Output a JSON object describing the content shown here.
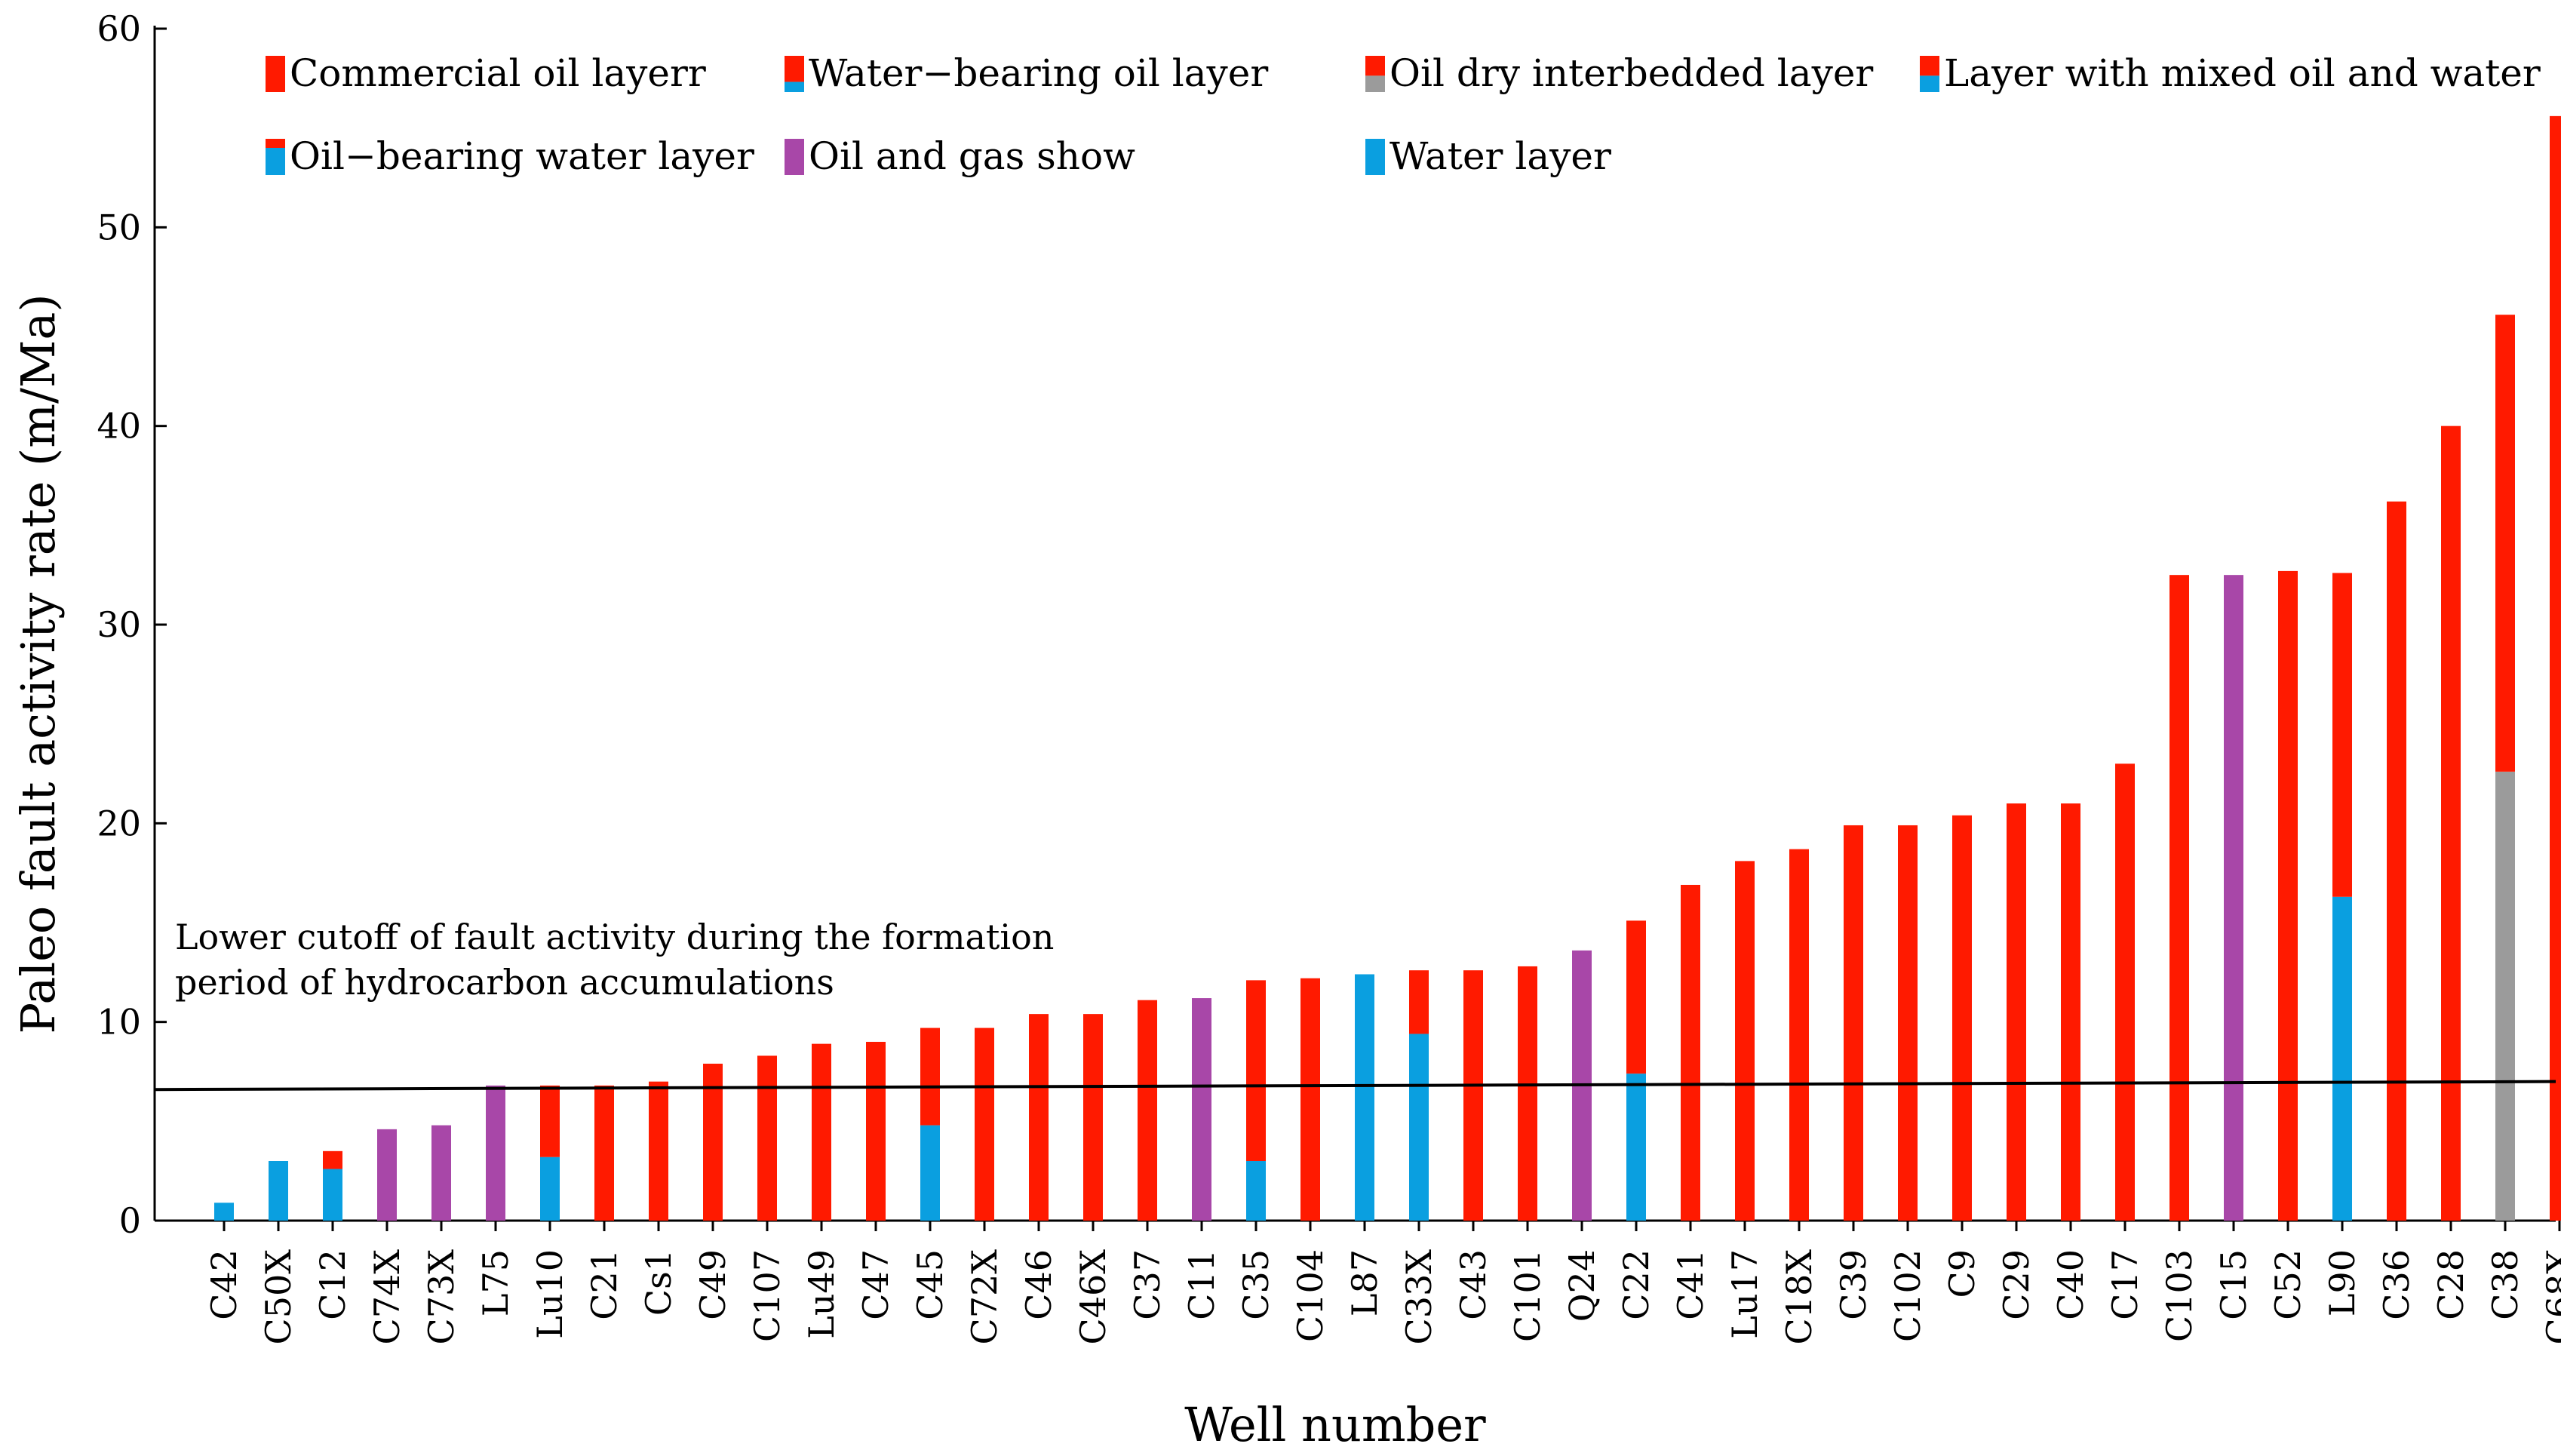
{
  "chart_data": {
    "type": "bar",
    "stacked": true,
    "title": "",
    "xlabel": "Well number",
    "ylabel": "Paleo fault activity rate (m/Ma)",
    "ylim": [
      0,
      60
    ],
    "yticks": [
      "0",
      "10",
      "20",
      "30",
      "40",
      "50",
      "60"
    ],
    "grid": false,
    "legend_position": "top",
    "colors": {
      "red": "#ff1a00",
      "blue": "#0a9fe0",
      "gray": "#9b9b9b",
      "purple": "#a847a8"
    },
    "legend": [
      {
        "label": "Commercial oil layerr",
        "swatch": "red"
      },
      {
        "label": "Water−bearing oil layer",
        "swatch": "red-over-blue"
      },
      {
        "label": "Oil dry interbedded layer",
        "swatch": "red-over-gray"
      },
      {
        "label": "Layer with mixed oil and water",
        "swatch": "red-over-blue-half"
      },
      {
        "label": "Oil−bearing water layer",
        "swatch": "blue-under-red-thin"
      },
      {
        "label": "Oil and gas show",
        "swatch": "purple"
      },
      {
        "label": "Water  layer",
        "swatch": "blue"
      }
    ],
    "categories": [
      "C42",
      "C50X",
      "C12",
      "C74X",
      "C73X",
      "L75",
      "Lu10",
      "C21",
      "Cs1",
      "C49",
      "C107",
      "Lu49",
      "C47",
      "C45",
      "C72X",
      "C46",
      "C46X",
      "C37",
      "C11",
      "C35",
      "C104",
      "L87",
      "C33X",
      "C43",
      "C101",
      "Q24",
      "C22",
      "C41",
      "Lu17",
      "C18X",
      "C39",
      "C102",
      "C9",
      "C29",
      "C40",
      "C17",
      "C103",
      "C15",
      "C52",
      "L90",
      "C36",
      "C28",
      "C38",
      "C68X"
    ],
    "bars": [
      {
        "category": "C42",
        "segments": [
          {
            "color": "blue",
            "from": 0,
            "to": 0.9
          }
        ]
      },
      {
        "category": "C50X",
        "segments": [
          {
            "color": "blue",
            "from": 0,
            "to": 3.0
          }
        ]
      },
      {
        "category": "C12",
        "segments": [
          {
            "color": "blue",
            "from": 0,
            "to": 2.6
          },
          {
            "color": "red",
            "from": 2.6,
            "to": 3.5
          }
        ]
      },
      {
        "category": "C74X",
        "segments": [
          {
            "color": "purple",
            "from": 0,
            "to": 4.6
          }
        ]
      },
      {
        "category": "C73X",
        "segments": [
          {
            "color": "purple",
            "from": 0,
            "to": 4.8
          }
        ]
      },
      {
        "category": "L75",
        "segments": [
          {
            "color": "purple",
            "from": 0,
            "to": 6.8
          }
        ]
      },
      {
        "category": "Lu10",
        "segments": [
          {
            "color": "blue",
            "from": 0,
            "to": 3.2
          },
          {
            "color": "red",
            "from": 3.2,
            "to": 6.8
          }
        ]
      },
      {
        "category": "C21",
        "segments": [
          {
            "color": "red",
            "from": 0,
            "to": 6.8
          }
        ]
      },
      {
        "category": "Cs1",
        "segments": [
          {
            "color": "red",
            "from": 0,
            "to": 7.0
          }
        ]
      },
      {
        "category": "C49",
        "segments": [
          {
            "color": "red",
            "from": 0,
            "to": 7.9
          }
        ]
      },
      {
        "category": "C107",
        "segments": [
          {
            "color": "red",
            "from": 0,
            "to": 8.3
          }
        ]
      },
      {
        "category": "Lu49",
        "segments": [
          {
            "color": "red",
            "from": 0,
            "to": 8.9
          }
        ]
      },
      {
        "category": "C47",
        "segments": [
          {
            "color": "red",
            "from": 0,
            "to": 9.0
          }
        ]
      },
      {
        "category": "C45",
        "segments": [
          {
            "color": "blue",
            "from": 0,
            "to": 4.8
          },
          {
            "color": "red",
            "from": 4.8,
            "to": 9.7
          }
        ]
      },
      {
        "category": "C72X",
        "segments": [
          {
            "color": "red",
            "from": 0,
            "to": 9.7
          }
        ]
      },
      {
        "category": "C46",
        "segments": [
          {
            "color": "red",
            "from": 0,
            "to": 10.4
          }
        ]
      },
      {
        "category": "C46X",
        "segments": [
          {
            "color": "red",
            "from": 0,
            "to": 10.4
          }
        ]
      },
      {
        "category": "C37",
        "segments": [
          {
            "color": "red",
            "from": 0,
            "to": 11.1
          }
        ]
      },
      {
        "category": "C11",
        "segments": [
          {
            "color": "purple",
            "from": 0,
            "to": 11.2
          }
        ]
      },
      {
        "category": "C35",
        "segments": [
          {
            "color": "blue",
            "from": 0,
            "to": 3.0
          },
          {
            "color": "red",
            "from": 3.0,
            "to": 12.1
          }
        ]
      },
      {
        "category": "C104",
        "segments": [
          {
            "color": "red",
            "from": 0,
            "to": 12.2
          }
        ]
      },
      {
        "category": "L87",
        "segments": [
          {
            "color": "blue",
            "from": 0,
            "to": 12.4
          }
        ]
      },
      {
        "category": "C33X",
        "segments": [
          {
            "color": "blue",
            "from": 0,
            "to": 9.4
          },
          {
            "color": "red",
            "from": 9.4,
            "to": 12.6
          }
        ]
      },
      {
        "category": "C43",
        "segments": [
          {
            "color": "red",
            "from": 0,
            "to": 12.6
          }
        ]
      },
      {
        "category": "C101",
        "segments": [
          {
            "color": "red",
            "from": 0,
            "to": 12.8
          }
        ]
      },
      {
        "category": "Q24",
        "segments": [
          {
            "color": "purple",
            "from": 0,
            "to": 13.6
          }
        ]
      },
      {
        "category": "C22",
        "segments": [
          {
            "color": "blue",
            "from": 0,
            "to": 7.4
          },
          {
            "color": "red",
            "from": 7.4,
            "to": 15.1
          }
        ]
      },
      {
        "category": "C41",
        "segments": [
          {
            "color": "red",
            "from": 0,
            "to": 16.9
          }
        ]
      },
      {
        "category": "Lu17",
        "segments": [
          {
            "color": "red",
            "from": 0,
            "to": 18.1
          }
        ]
      },
      {
        "category": "C18X",
        "segments": [
          {
            "color": "red",
            "from": 0,
            "to": 18.7
          }
        ]
      },
      {
        "category": "C39",
        "segments": [
          {
            "color": "red",
            "from": 0,
            "to": 19.9
          }
        ]
      },
      {
        "category": "C102",
        "segments": [
          {
            "color": "red",
            "from": 0,
            "to": 19.9
          }
        ]
      },
      {
        "category": "C9",
        "segments": [
          {
            "color": "red",
            "from": 0,
            "to": 20.4
          }
        ]
      },
      {
        "category": "C29",
        "segments": [
          {
            "color": "red",
            "from": 0,
            "to": 21.0
          }
        ]
      },
      {
        "category": "C40",
        "segments": [
          {
            "color": "red",
            "from": 0,
            "to": 21.0
          }
        ]
      },
      {
        "category": "C17",
        "segments": [
          {
            "color": "red",
            "from": 0,
            "to": 23.0
          }
        ]
      },
      {
        "category": "C103",
        "segments": [
          {
            "color": "red",
            "from": 0,
            "to": 32.5
          }
        ]
      },
      {
        "category": "C15",
        "segments": [
          {
            "color": "purple",
            "from": 0,
            "to": 32.5
          }
        ]
      },
      {
        "category": "C52",
        "segments": [
          {
            "color": "red",
            "from": 0,
            "to": 32.7
          }
        ]
      },
      {
        "category": "L90",
        "segments": [
          {
            "color": "blue",
            "from": 0,
            "to": 16.3
          },
          {
            "color": "red",
            "from": 16.3,
            "to": 32.6
          }
        ]
      },
      {
        "category": "C36",
        "segments": [
          {
            "color": "red",
            "from": 0,
            "to": 36.2
          }
        ]
      },
      {
        "category": "C28",
        "segments": [
          {
            "color": "red",
            "from": 0,
            "to": 40.0
          }
        ]
      },
      {
        "category": "C38",
        "segments": [
          {
            "color": "gray",
            "from": 0,
            "to": 22.6
          },
          {
            "color": "red",
            "from": 22.6,
            "to": 45.6
          }
        ]
      },
      {
        "category": "C68X",
        "segments": [
          {
            "color": "red",
            "from": 0,
            "to": 55.6
          }
        ]
      }
    ],
    "cutoff_line": {
      "label_lines": [
        "Lower cutoff of fault activity during the formation",
        "period of hydrocarbon accumulations"
      ],
      "y_start": 6.6,
      "y_end": 7.0
    }
  }
}
